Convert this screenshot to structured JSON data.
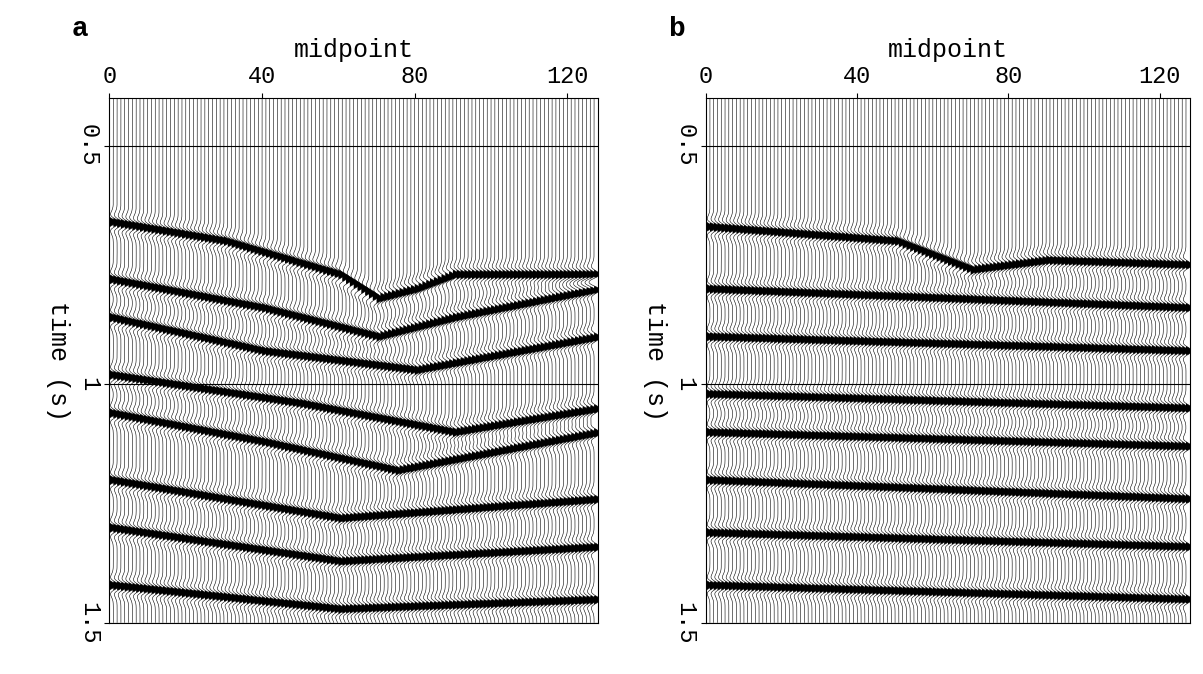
{
  "chart_data": [
    {
      "type": "wiggle",
      "label": "a",
      "xlabel": "midpoint",
      "ylabel": "time (s)",
      "xlim": [
        0,
        128
      ],
      "xticks": [
        0,
        40,
        80,
        120
      ],
      "ylim": [
        1.5,
        0.4
      ],
      "yticks": [
        0.5,
        1,
        1.5
      ],
      "grid": true,
      "events": [
        {
          "x": [
            0,
            30,
            60,
            70,
            80,
            90,
            128
          ],
          "t": [
            0.66,
            0.7,
            0.77,
            0.82,
            0.8,
            0.77,
            0.77
          ]
        },
        {
          "x": [
            0,
            40,
            70,
            90,
            128
          ],
          "t": [
            0.78,
            0.84,
            0.9,
            0.86,
            0.8
          ]
        },
        {
          "x": [
            0,
            40,
            80,
            128
          ],
          "t": [
            0.86,
            0.93,
            0.97,
            0.9
          ]
        },
        {
          "x": [
            0,
            50,
            90,
            128
          ],
          "t": [
            0.98,
            1.04,
            1.1,
            1.05
          ]
        },
        {
          "x": [
            0,
            40,
            75,
            128
          ],
          "t": [
            1.06,
            1.12,
            1.18,
            1.1
          ]
        },
        {
          "x": [
            0,
            60,
            128
          ],
          "t": [
            1.2,
            1.28,
            1.24
          ]
        },
        {
          "x": [
            0,
            60,
            128
          ],
          "t": [
            1.3,
            1.37,
            1.34
          ]
        },
        {
          "x": [
            0,
            60,
            128
          ],
          "t": [
            1.42,
            1.47,
            1.45
          ]
        }
      ]
    },
    {
      "type": "wiggle",
      "label": "b",
      "xlabel": "midpoint",
      "ylabel": "time (s)",
      "xlim": [
        0,
        128
      ],
      "xticks": [
        0,
        40,
        80,
        120
      ],
      "ylim": [
        1.5,
        0.4
      ],
      "yticks": [
        0.5,
        1,
        1.5
      ],
      "grid": true,
      "events": [
        {
          "x": [
            0,
            50,
            70,
            90,
            128
          ],
          "t": [
            0.67,
            0.7,
            0.76,
            0.74,
            0.75
          ]
        },
        {
          "x": [
            0,
            128
          ],
          "t": [
            0.8,
            0.84
          ]
        },
        {
          "x": [
            0,
            128
          ],
          "t": [
            0.9,
            0.93
          ]
        },
        {
          "x": [
            0,
            128
          ],
          "t": [
            1.02,
            1.05
          ]
        },
        {
          "x": [
            0,
            128
          ],
          "t": [
            1.1,
            1.13
          ]
        },
        {
          "x": [
            0,
            128
          ],
          "t": [
            1.2,
            1.24
          ]
        },
        {
          "x": [
            0,
            128
          ],
          "t": [
            1.31,
            1.34
          ]
        },
        {
          "x": [
            0,
            128
          ],
          "t": [
            1.42,
            1.45
          ]
        }
      ]
    }
  ]
}
